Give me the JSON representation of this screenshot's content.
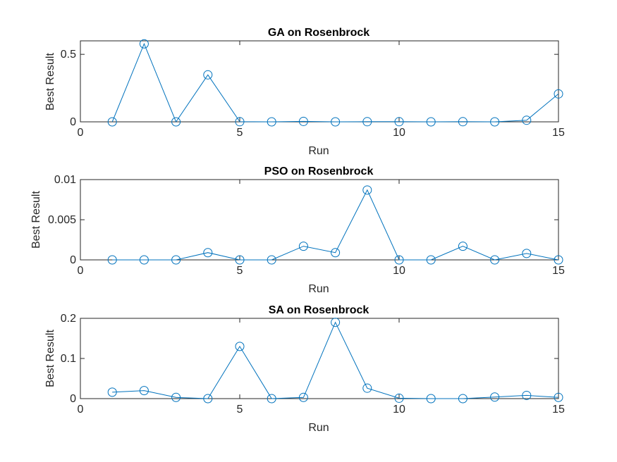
{
  "chart_data": [
    {
      "type": "line",
      "title": "GA on Rosenbrock",
      "xlabel": "Run",
      "ylabel": "Best Result",
      "xlim": [
        0,
        15
      ],
      "ylim": [
        0,
        0.6
      ],
      "xticks": [
        "0",
        "5",
        "10",
        "15"
      ],
      "yticks": [
        "0",
        "0.5"
      ],
      "ytick_values": [
        0,
        0.5
      ],
      "x": [
        1,
        2,
        3,
        4,
        5,
        6,
        7,
        8,
        9,
        10,
        11,
        12,
        13,
        14,
        15
      ],
      "series": [
        {
          "values": [
            0.0,
            0.578,
            0.0,
            0.348,
            0.001,
            0.0,
            0.003,
            0.0,
            0.001,
            0.001,
            0.0,
            0.001,
            0.0,
            0.012,
            0.207
          ]
        }
      ],
      "marker": "circle",
      "grid": false
    },
    {
      "type": "line",
      "title": "PSO on Rosenbrock",
      "xlabel": "Run",
      "ylabel": "Best Result",
      "xlim": [
        0,
        15
      ],
      "ylim": [
        0,
        0.01
      ],
      "xticks": [
        "0",
        "5",
        "10",
        "15"
      ],
      "yticks": [
        "0",
        "0.005",
        "0.01"
      ],
      "ytick_values": [
        0,
        0.005,
        0.01
      ],
      "x": [
        1,
        2,
        3,
        4,
        5,
        6,
        7,
        8,
        9,
        10,
        11,
        12,
        13,
        14,
        15
      ],
      "series": [
        {
          "values": [
            0.0,
            0.0,
            0.0,
            0.0009,
            0.0,
            0.0,
            0.0017,
            0.0009,
            0.0087,
            0.0,
            0.0,
            0.0017,
            0.0,
            0.0008,
            0.0
          ]
        }
      ],
      "marker": "circle",
      "grid": false
    },
    {
      "type": "line",
      "title": "SA on Rosenbrock",
      "xlabel": "Run",
      "ylabel": "Best Result",
      "xlim": [
        0,
        15
      ],
      "ylim": [
        0,
        0.2
      ],
      "xticks": [
        "0",
        "5",
        "10",
        "15"
      ],
      "yticks": [
        "0",
        "0.1",
        "0.2"
      ],
      "ytick_values": [
        0,
        0.1,
        0.2
      ],
      "x": [
        1,
        2,
        3,
        4,
        5,
        6,
        7,
        8,
        9,
        10,
        11,
        12,
        13,
        14,
        15
      ],
      "series": [
        {
          "values": [
            0.016,
            0.02,
            0.003,
            0.0,
            0.13,
            0.0,
            0.003,
            0.19,
            0.026,
            0.001,
            0.0,
            0.0,
            0.004,
            0.008,
            0.003
          ]
        }
      ],
      "marker": "circle",
      "grid": false
    }
  ],
  "colors": {
    "line": "#0072bd",
    "axes": "#262626",
    "background": "#ffffff"
  }
}
